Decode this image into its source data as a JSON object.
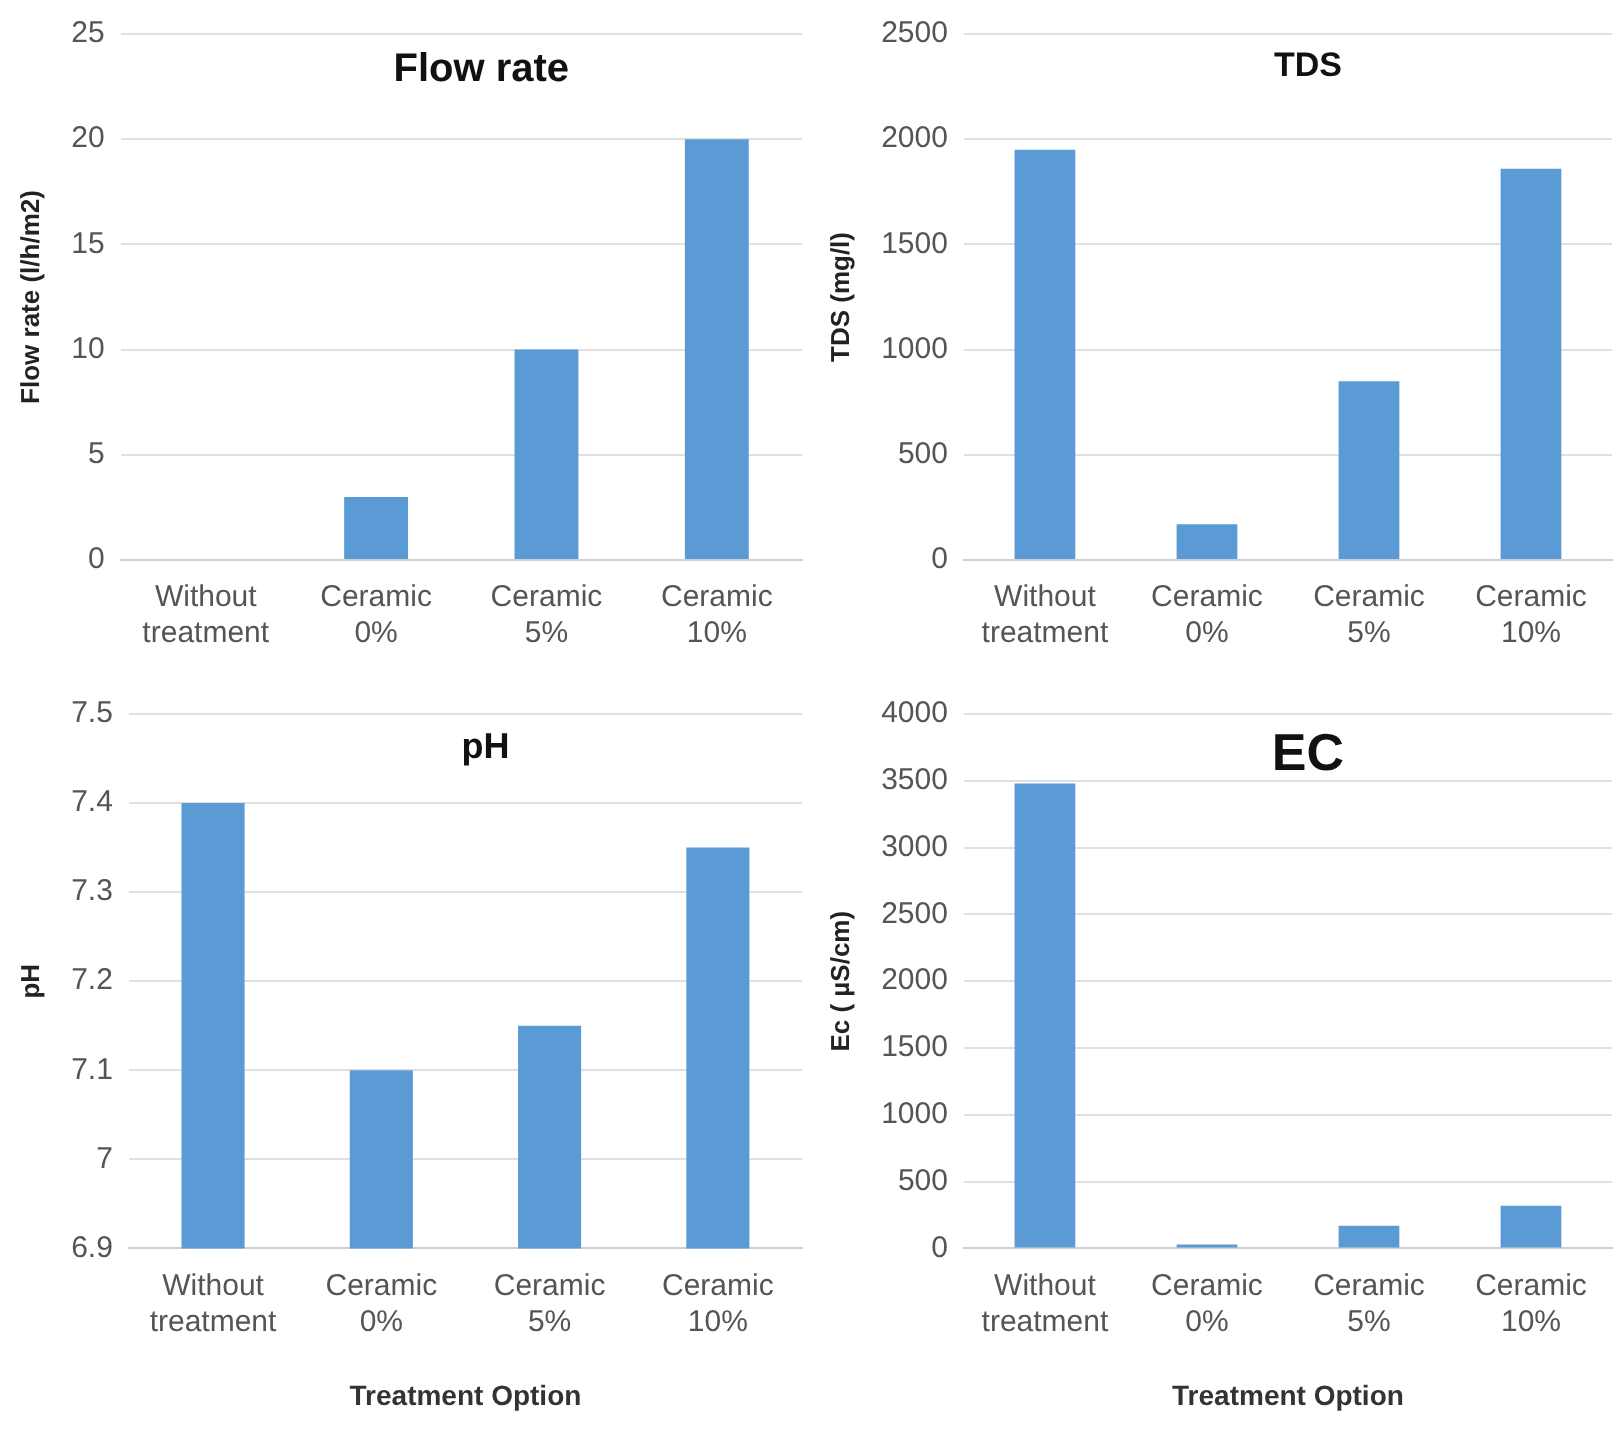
{
  "chart_data": [
    {
      "type": "bar",
      "title": "Flow rate",
      "ylabel": "Flow rate (l/h/m2)",
      "categories": [
        "Without treatment",
        "Ceramic 0%",
        "Ceramic 5%",
        "Ceramic 10%"
      ],
      "values": [
        0,
        3,
        10,
        20
      ],
      "color": "#5b9bd5",
      "ylim": [
        0,
        25
      ],
      "yticks": [
        0,
        5,
        10,
        15,
        20,
        25
      ],
      "grid": "y"
    },
    {
      "type": "bar",
      "title": "TDS",
      "ylabel": "TDS (mg/l)",
      "categories": [
        "Without treatment",
        "Ceramic 0%",
        "Ceramic 5%",
        "Ceramic 10%"
      ],
      "values": [
        1950,
        170,
        850,
        1860
      ],
      "color": "#5b9bd5",
      "ylim": [
        0,
        2500
      ],
      "yticks": [
        0,
        500,
        1000,
        1500,
        2000,
        2500
      ],
      "grid": "y"
    },
    {
      "type": "bar",
      "title": "pH",
      "ylabel": "pH",
      "xlabel": "Treatment Option",
      "categories": [
        "Without treatment",
        "Ceramic 0%",
        "Ceramic 5%",
        "Ceramic 10%"
      ],
      "values": [
        7.4,
        7.1,
        7.15,
        7.35
      ],
      "color": "#5b9bd5",
      "ylim": [
        6.9,
        7.5
      ],
      "yticks": [
        6.9,
        7,
        7.1,
        7.2,
        7.3,
        7.4,
        7.5
      ],
      "grid": "y"
    },
    {
      "type": "bar",
      "title": "EC",
      "ylabel": "Ec ( µS/cm)",
      "xlabel": "Treatment Option",
      "categories": [
        "Without treatment",
        "Ceramic 0%",
        "Ceramic 5%",
        "Ceramic 10%"
      ],
      "values": [
        3480,
        30,
        170,
        320
      ],
      "color": "#5b9bd5",
      "ylim": [
        0,
        4000
      ],
      "yticks": [
        0,
        500,
        1000,
        1500,
        2000,
        2500,
        3000,
        3500,
        4000
      ],
      "grid": "y"
    }
  ]
}
